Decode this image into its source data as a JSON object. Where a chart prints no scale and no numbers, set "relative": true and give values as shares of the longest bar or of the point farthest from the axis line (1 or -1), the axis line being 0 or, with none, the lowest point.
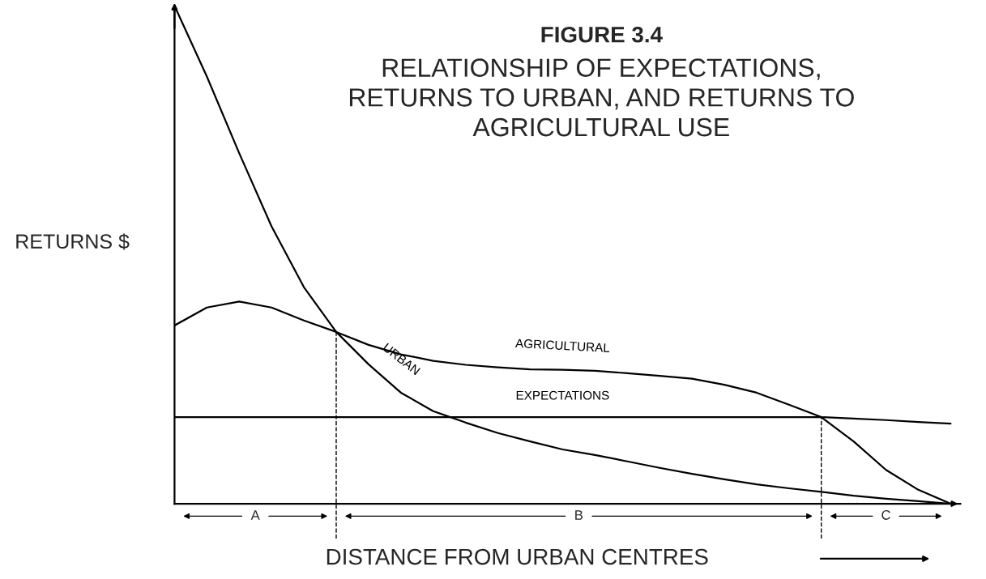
{
  "chart_data": {
    "type": "line",
    "relative": true,
    "title": "FIGURE 3.4",
    "subtitle": "RELATIONSHIP OF EXPECTATIONS,\nRETURNS TO URBAN, AND RETURNS TO\nAGRICULTURAL USE",
    "xlabel": "DISTANCE FROM URBAN CENTRES",
    "ylabel": "RETURNS $",
    "categories": [
      null,
      null,
      null,
      null,
      null,
      null,
      null,
      null,
      null,
      null,
      null,
      null,
      null,
      null,
      null,
      null,
      null,
      null,
      null,
      null,
      null,
      null,
      null,
      null,
      null
    ],
    "series": [
      {
        "name": "URBAN",
        "color": "#000000",
        "values": [
          1,
          0.858,
          0.704,
          0.557,
          0.435,
          0.345,
          0.28,
          0.223,
          0.186,
          0.163,
          0.142,
          0.125,
          0.109,
          0.098,
          0.085,
          0.072,
          0.06,
          0.049,
          0.039,
          0.031,
          0.024,
          0.016,
          0.01,
          0.005,
          0
        ]
      },
      {
        "name": "AGRICULTURAL",
        "color": "#000000",
        "values": [
          0.358,
          0.394,
          0.406,
          0.394,
          0.368,
          0.345,
          0.319,
          0.3,
          0.287,
          0.279,
          0.274,
          0.27,
          0.269,
          0.267,
          0.262,
          0.257,
          0.251,
          0.239,
          0.223,
          0.199,
          0.174,
          0.125,
          0.068,
          0.028,
          0
        ]
      },
      {
        "name": "EXPECTATIONS",
        "color": "#000000",
        "values": [
          0.174,
          0.174,
          0.174,
          0.174,
          0.174,
          0.174,
          0.174,
          0.174,
          0.174,
          0.174,
          0.174,
          0.174,
          0.174,
          0.174,
          0.174,
          0.174,
          0.174,
          0.174,
          0.174,
          0.174,
          0.174,
          0.171,
          0.168,
          0.164,
          0.161
        ]
      }
    ],
    "annotations": [
      "A",
      "B",
      "C"
    ],
    "legend": false,
    "line_style": "solid",
    "marker": "none"
  }
}
